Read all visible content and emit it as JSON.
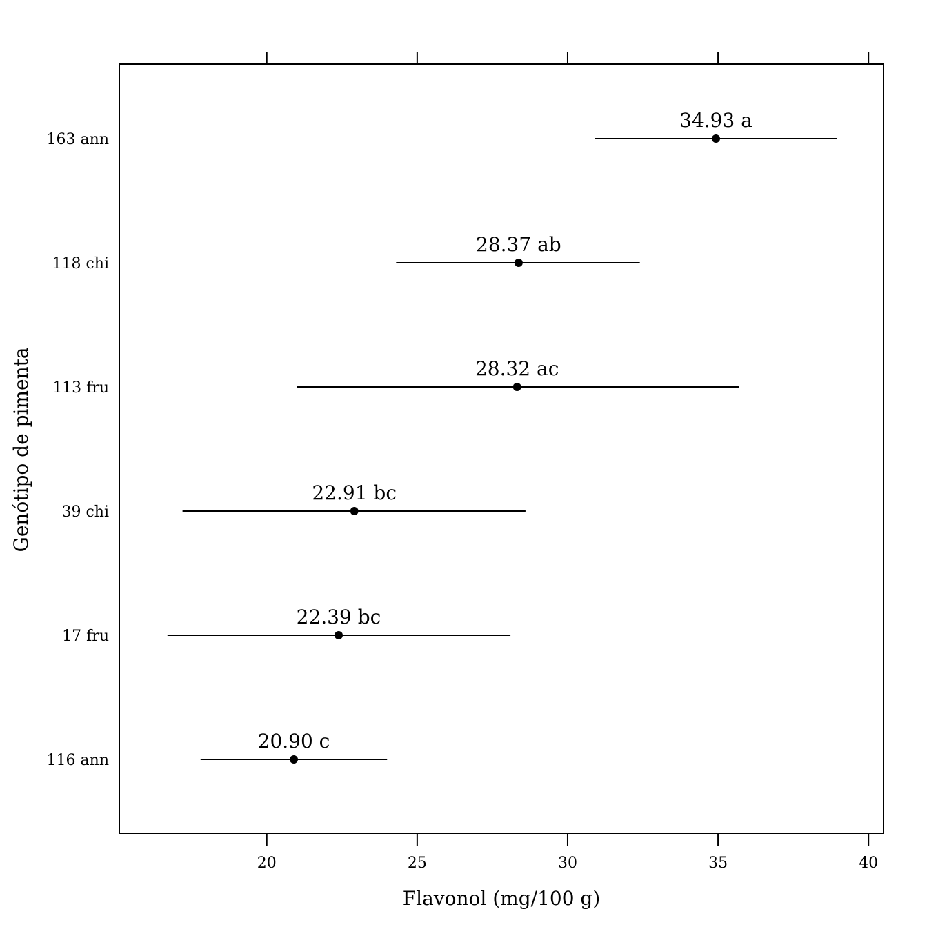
{
  "chart_data": {
    "type": "scatter",
    "orientation": "horizontal",
    "xlabel": "Flavonol (mg/100 g)",
    "ylabel": "Genótipo de pimenta",
    "xlim": [
      15.1,
      40.5
    ],
    "x_ticks": [
      20,
      25,
      30,
      35,
      40
    ],
    "x_tick_labels": [
      "20",
      "25",
      "30",
      "35",
      "40"
    ],
    "grid": false,
    "categories": [
      "163 ann",
      "118 chi",
      "113 fru",
      "39 chi",
      "17 fru",
      "116 ann"
    ],
    "values": [
      34.93,
      28.37,
      28.32,
      22.91,
      22.39,
      20.9
    ],
    "lower": [
      30.9,
      24.3,
      21.0,
      17.2,
      16.7,
      17.8
    ],
    "upper": [
      38.95,
      32.4,
      35.7,
      28.6,
      28.1,
      24.0
    ],
    "point_labels": [
      "34.93 a",
      "28.37 ab",
      "28.32 ac",
      "22.91 bc",
      "22.39 bc",
      "20.90 c"
    ]
  }
}
